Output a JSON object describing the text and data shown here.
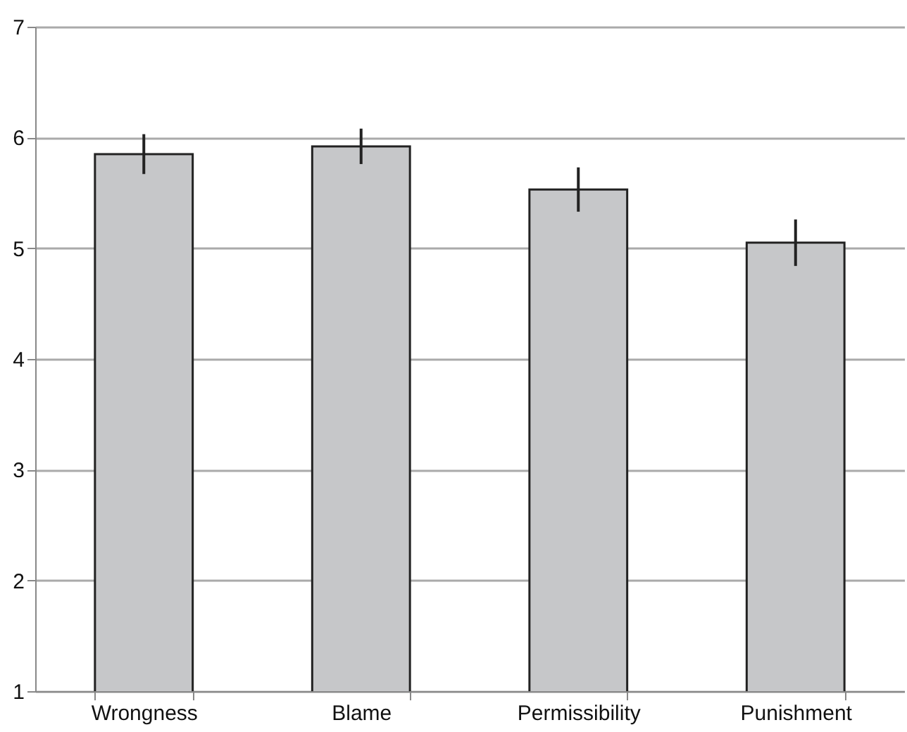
{
  "chart_data": {
    "type": "bar",
    "categories": [
      "Wrongness",
      "Blame",
      "Permissibility",
      "Punishment"
    ],
    "values": [
      5.85,
      5.92,
      5.53,
      5.05
    ],
    "errors": [
      0.18,
      0.16,
      0.2,
      0.21
    ],
    "color": "#c6c7c9",
    "ylim": [
      1,
      7
    ],
    "yticks": [
      1,
      2,
      3,
      4,
      5,
      6,
      7
    ],
    "grid": "y"
  }
}
